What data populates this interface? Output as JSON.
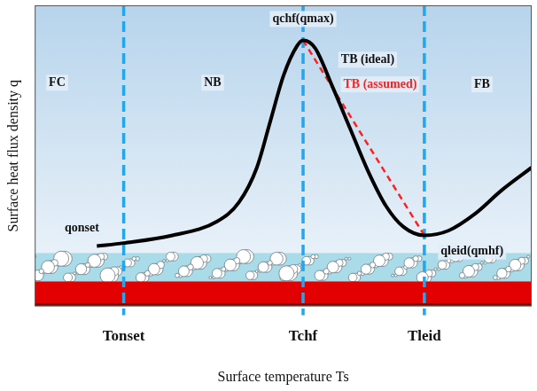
{
  "chart_data": {
    "type": "line",
    "x_label": "Surface temperature Ts",
    "y_label": "Surface heat flux density q",
    "xlim": [
      0,
      100
    ],
    "ylim": [
      0,
      110
    ],
    "xticks": [
      {
        "value": 17.9,
        "label": "Tonset"
      },
      {
        "value": 54.0,
        "label": "Tchf"
      },
      {
        "value": 78.4,
        "label": "Tleid"
      }
    ],
    "yticks": [],
    "tick_labels": "x",
    "grid": true,
    "series": [
      {
        "color": "#000000",
        "line_style": "solid",
        "x": [
          12.5,
          17.9,
          27.7,
          36.7,
          41.1,
          44.7,
          47.4,
          50.1,
          52.8,
          54.0,
          56.4,
          59.9,
          63.5,
          67.1,
          70.7,
          74.2,
          78.4,
          83.2,
          88.6,
          93.9,
          100
        ],
        "values": [
          22.0,
          23.1,
          25.9,
          31.0,
          38.0,
          50.7,
          67.6,
          84.5,
          95.2,
          97.2,
          94.4,
          80.3,
          64.8,
          49.3,
          36.6,
          29.0,
          25.9,
          27.6,
          33.8,
          42.3,
          50.7
        ]
      },
      {
        "color": "#ff2020",
        "line_style": "dashed",
        "x": [
          54.0,
          78.4
        ],
        "values": [
          97.2,
          25.9
        ]
      }
    ],
    "annotations": [
      {
        "text": "FC",
        "x": 4.5,
        "y": 81.7
      },
      {
        "text": "NB",
        "x": 35.8,
        "y": 81.7
      },
      {
        "text": "qchf(qmax)",
        "x": 54.0,
        "y": 105
      },
      {
        "text": "TB (ideal)",
        "x": 67.0,
        "y": 90.1
      },
      {
        "text": "TB (assumed)",
        "x": 69.5,
        "y": 81.1,
        "color": "#ff2020"
      },
      {
        "text": "FB",
        "x": 90.0,
        "y": 81.1
      },
      {
        "text": "qonset",
        "x": 9.5,
        "y": 28.5
      },
      {
        "text": "qleid(qmhf)",
        "x": 88.0,
        "y": 20.0
      }
    ]
  }
}
